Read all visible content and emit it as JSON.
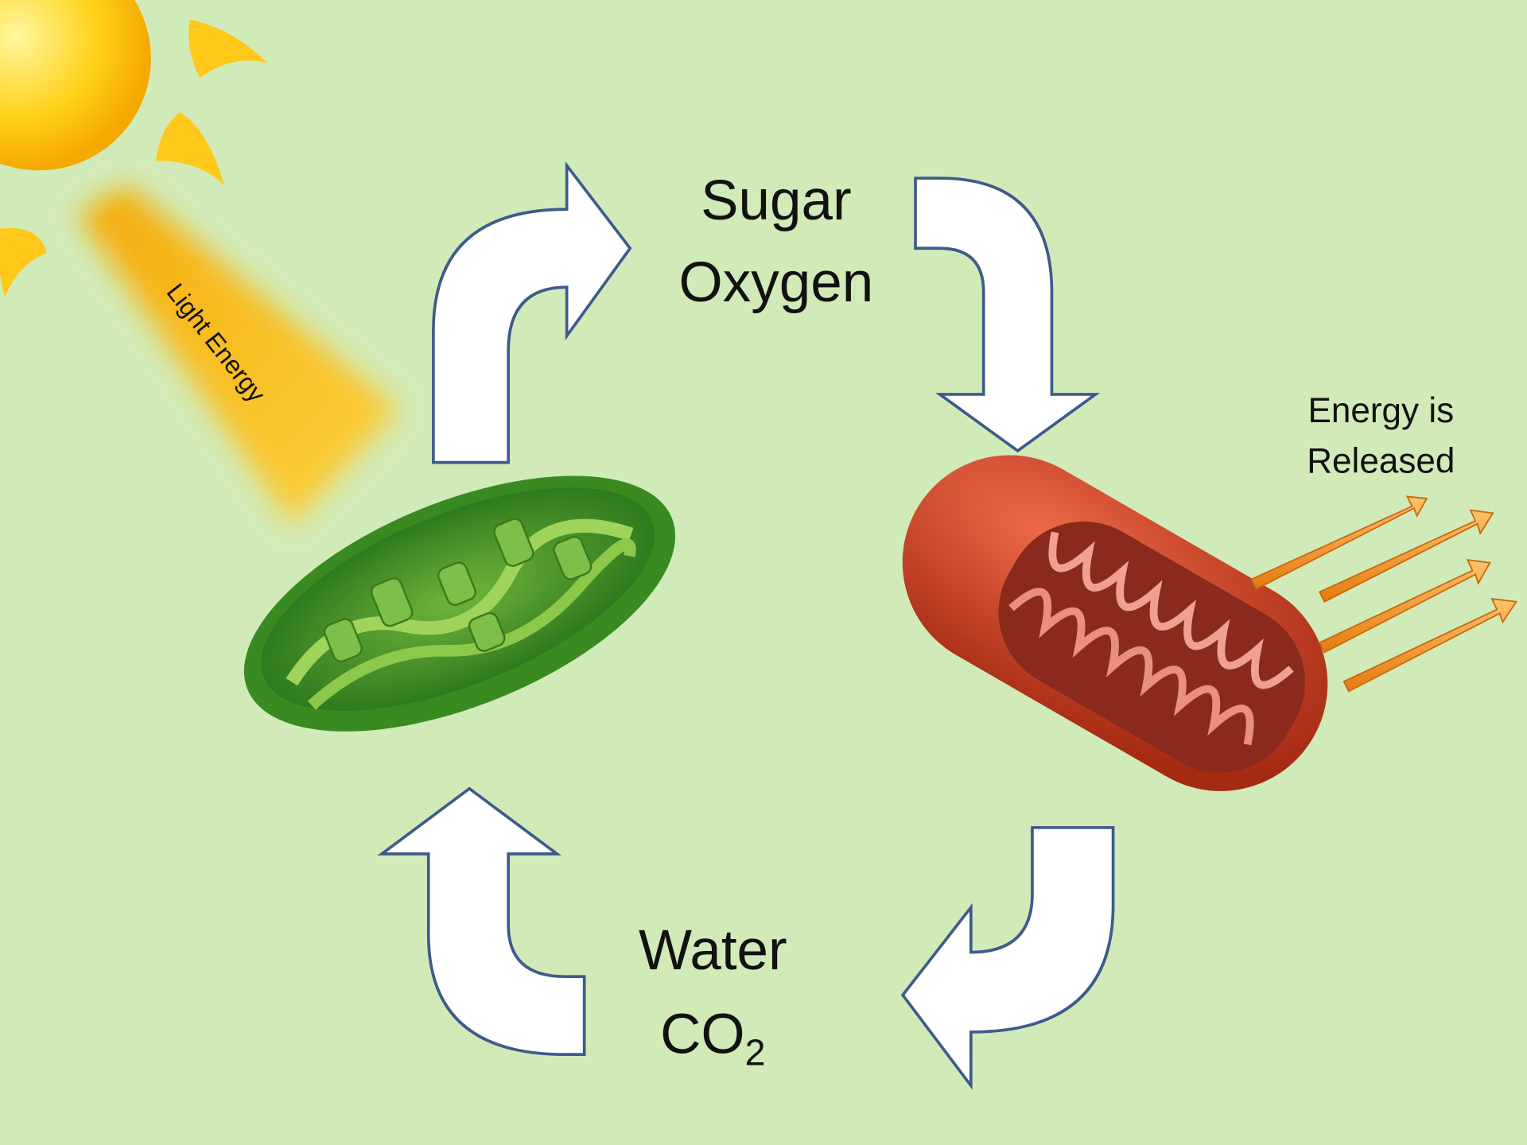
{
  "light_source": {
    "label": "Light Energy"
  },
  "products": {
    "lines": [
      "Sugar",
      "Oxygen"
    ]
  },
  "inputs": {
    "lines": [
      "Water",
      {
        "text": "CO",
        "subscript": "2"
      }
    ]
  },
  "energy_output": {
    "lines": [
      "Energy is",
      "Released"
    ]
  }
}
